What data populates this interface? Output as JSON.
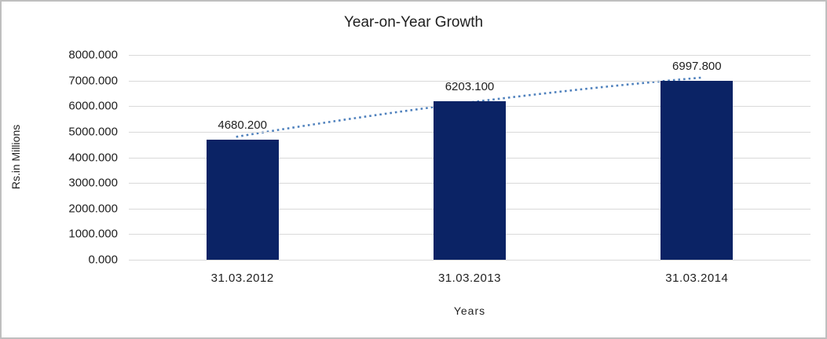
{
  "window": {
    "background": "#ffffff",
    "border_color": "#bfbfbf"
  },
  "chart_data": {
    "type": "bar",
    "title": "Year-on-Year Growth",
    "xlabel": "Years",
    "ylabel": "Rs.in Millions",
    "categories": [
      "31.03.2012",
      "31.03.2013",
      "31.03.2014"
    ],
    "series": [
      {
        "name": "Year-on-Year Growth",
        "values": [
          4680.2,
          6203.1,
          6997.8
        ]
      }
    ],
    "value_labels": [
      "4680.200",
      "6203.100",
      "6997.800"
    ],
    "ylim": [
      0,
      8000
    ],
    "ytick_step": 1000,
    "ytick_labels": [
      "0.000",
      "1000.000",
      "2000.000",
      "3000.000",
      "4000.000",
      "5000.000",
      "6000.000",
      "7000.000",
      "8000.000"
    ],
    "grid": true,
    "legend": "none",
    "trendline": {
      "type": "linear",
      "style": "dotted",
      "color": "#4f81bd"
    },
    "colors": {
      "bar": "#0b2365",
      "gridline": "#d9d9d9",
      "axis_line": "#c9c9c9",
      "text": "#1f1f1f",
      "trendline": "#4f81bd"
    }
  }
}
